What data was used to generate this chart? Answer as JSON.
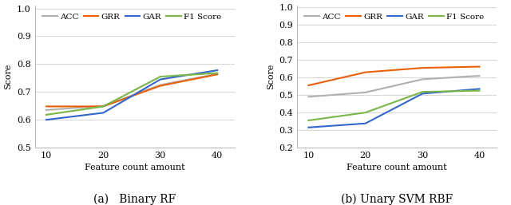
{
  "x": [
    10,
    20,
    30,
    40
  ],
  "chart_a": {
    "title": "(a)   Binary RF",
    "ACC": [
      0.635,
      0.65,
      0.725,
      0.765
    ],
    "GRR": [
      0.648,
      0.648,
      0.722,
      0.763
    ],
    "GAR": [
      0.6,
      0.625,
      0.745,
      0.778
    ],
    "F1Score": [
      0.618,
      0.648,
      0.755,
      0.768
    ],
    "ylim": [
      0.5,
      1.01
    ],
    "yticks": [
      0.5,
      0.6,
      0.7,
      0.8,
      0.9,
      1.0
    ]
  },
  "chart_b": {
    "title": "(b) Unary SVM RBF",
    "ACC": [
      0.49,
      0.515,
      0.59,
      0.61
    ],
    "GRR": [
      0.555,
      0.63,
      0.655,
      0.662
    ],
    "GAR": [
      0.315,
      0.338,
      0.508,
      0.535
    ],
    "F1Score": [
      0.355,
      0.4,
      0.518,
      0.525
    ],
    "ylim": [
      0.2,
      1.01
    ],
    "yticks": [
      0.2,
      0.3,
      0.4,
      0.5,
      0.6,
      0.7,
      0.8,
      0.9,
      1.0
    ]
  },
  "colors": {
    "ACC": "#b0b0b0",
    "GRR": "#e8600a",
    "GAR": "#3366cc",
    "F1Score": "#7ab648"
  },
  "xlabel": "Feature count amount",
  "ylabel": "Score",
  "linewidth": 1.5
}
